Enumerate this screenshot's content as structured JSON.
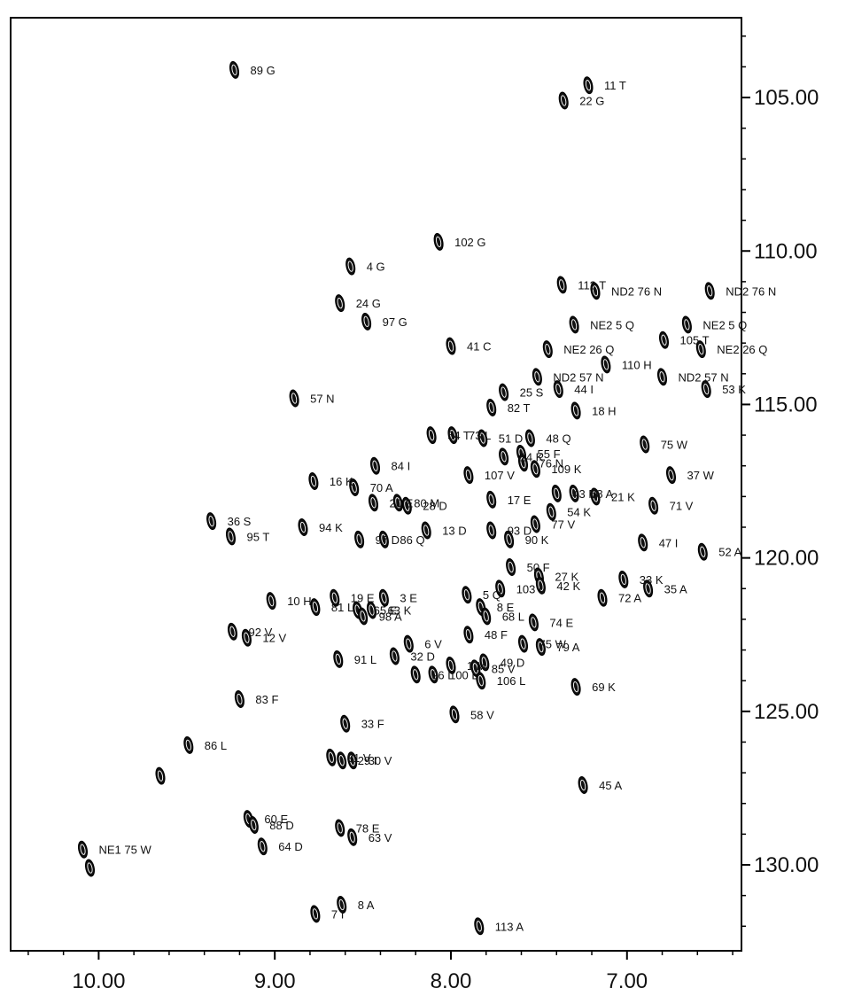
{
  "chart_data": {
    "type": "scatter",
    "title": "",
    "xlabel": "",
    "ylabel": "",
    "x_reversed": true,
    "y_reversed": true,
    "xlim": [
      10.5,
      6.35
    ],
    "ylim": [
      102.4,
      132.8
    ],
    "x_ticks": [
      10.0,
      9.0,
      8.0,
      7.0
    ],
    "x_tick_labels": [
      "10.00",
      "9.00",
      "8.00",
      "7.00"
    ],
    "y_ticks": [
      105.0,
      110.0,
      115.0,
      120.0,
      125.0,
      130.0
    ],
    "y_tick_labels": [
      "105.00",
      "110.00",
      "115.00",
      "120.00",
      "125.00",
      "130.00"
    ],
    "grid": false,
    "series": [
      {
        "points": [
          {
            "x": 9.23,
            "y": 104.1,
            "label": "89 G"
          },
          {
            "x": 7.22,
            "y": 104.6,
            "label": "11 T"
          },
          {
            "x": 7.36,
            "y": 105.1,
            "label": "22 G"
          },
          {
            "x": 8.07,
            "y": 109.7,
            "label": "102 G"
          },
          {
            "x": 8.57,
            "y": 110.5,
            "label": "4 G"
          },
          {
            "x": 7.37,
            "y": 111.1,
            "label": "112 T"
          },
          {
            "x": 7.18,
            "y": 111.3,
            "label": "ND2 76 N"
          },
          {
            "x": 6.53,
            "y": 111.3,
            "label": "ND2 76 N"
          },
          {
            "x": 8.63,
            "y": 111.7,
            "label": "24 G"
          },
          {
            "x": 8.48,
            "y": 112.3,
            "label": "97 G"
          },
          {
            "x": 7.3,
            "y": 112.4,
            "label": "NE2 5 Q"
          },
          {
            "x": 6.66,
            "y": 112.4,
            "label": "NE2 5 Q"
          },
          {
            "x": 6.79,
            "y": 112.9,
            "label": "105 T"
          },
          {
            "x": 7.45,
            "y": 113.2,
            "label": "NE2 26 Q"
          },
          {
            "x": 6.58,
            "y": 113.2,
            "label": "NE2 26 Q"
          },
          {
            "x": 8.0,
            "y": 113.1,
            "label": "41 C"
          },
          {
            "x": 7.12,
            "y": 113.7,
            "label": "110 H"
          },
          {
            "x": 7.51,
            "y": 114.1,
            "label": "ND2 57 N"
          },
          {
            "x": 6.8,
            "y": 114.1,
            "label": "ND2 57 N"
          },
          {
            "x": 6.55,
            "y": 114.5,
            "label": "53 K"
          },
          {
            "x": 7.39,
            "y": 114.5,
            "label": "44 I"
          },
          {
            "x": 7.7,
            "y": 114.6,
            "label": "25 S"
          },
          {
            "x": 8.89,
            "y": 114.8,
            "label": "57 N"
          },
          {
            "x": 7.77,
            "y": 115.1,
            "label": "82 T"
          },
          {
            "x": 7.29,
            "y": 115.2,
            "label": "18 H"
          },
          {
            "x": 8.11,
            "y": 116.0,
            "label": "54 T"
          },
          {
            "x": 7.99,
            "y": 116.0,
            "label": "73 L"
          },
          {
            "x": 7.82,
            "y": 116.1,
            "label": "51 D"
          },
          {
            "x": 7.55,
            "y": 116.1,
            "label": "48 Q"
          },
          {
            "x": 6.9,
            "y": 116.3,
            "label": "75 W"
          },
          {
            "x": 7.6,
            "y": 116.6,
            "label": "55 F"
          },
          {
            "x": 7.7,
            "y": 116.7,
            "label": "14 K"
          },
          {
            "x": 7.59,
            "y": 116.9,
            "label": "76 N"
          },
          {
            "x": 8.43,
            "y": 117.0,
            "label": "84 I"
          },
          {
            "x": 7.52,
            "y": 117.1,
            "label": "109 K"
          },
          {
            "x": 7.9,
            "y": 117.3,
            "label": "107 V"
          },
          {
            "x": 6.75,
            "y": 117.3,
            "label": "37 W"
          },
          {
            "x": 8.78,
            "y": 117.5,
            "label": "16 K"
          },
          {
            "x": 8.55,
            "y": 117.7,
            "label": "70 A"
          },
          {
            "x": 7.4,
            "y": 117.9,
            "label": "43 M"
          },
          {
            "x": 7.3,
            "y": 117.9,
            "label": "68 A"
          },
          {
            "x": 7.18,
            "y": 118.0,
            "label": "21 K"
          },
          {
            "x": 8.44,
            "y": 118.2,
            "label": "20 E"
          },
          {
            "x": 8.3,
            "y": 118.2,
            "label": "80 M"
          },
          {
            "x": 7.77,
            "y": 118.1,
            "label": "17 E"
          },
          {
            "x": 8.25,
            "y": 118.3,
            "label": "28 D"
          },
          {
            "x": 6.85,
            "y": 118.3,
            "label": "71 V"
          },
          {
            "x": 7.43,
            "y": 118.5,
            "label": "54 K"
          },
          {
            "x": 9.36,
            "y": 118.8,
            "label": "36 S"
          },
          {
            "x": 7.52,
            "y": 118.9,
            "label": "77 V"
          },
          {
            "x": 8.84,
            "y": 119.0,
            "label": "94 K"
          },
          {
            "x": 8.14,
            "y": 119.1,
            "label": "13 D"
          },
          {
            "x": 7.77,
            "y": 119.1,
            "label": "93 D"
          },
          {
            "x": 9.25,
            "y": 119.3,
            "label": "95 T"
          },
          {
            "x": 8.52,
            "y": 119.4,
            "label": "97 D"
          },
          {
            "x": 8.38,
            "y": 119.4,
            "label": "86 Q"
          },
          {
            "x": 7.67,
            "y": 119.4,
            "label": "90 K"
          },
          {
            "x": 6.91,
            "y": 119.5,
            "label": "47 I"
          },
          {
            "x": 6.57,
            "y": 119.8,
            "label": "52 A"
          },
          {
            "x": 7.66,
            "y": 120.3,
            "label": "50 F"
          },
          {
            "x": 7.5,
            "y": 120.6,
            "label": "27 K"
          },
          {
            "x": 7.02,
            "y": 120.7,
            "label": "33 K"
          },
          {
            "x": 7.49,
            "y": 120.9,
            "label": "42 K"
          },
          {
            "x": 7.72,
            "y": 121.0,
            "label": "103 L"
          },
          {
            "x": 6.88,
            "y": 121.0,
            "label": "35 A"
          },
          {
            "x": 7.91,
            "y": 121.2,
            "label": "5 Q"
          },
          {
            "x": 7.14,
            "y": 121.3,
            "label": "72 A"
          },
          {
            "x": 8.66,
            "y": 121.3,
            "label": "19 E"
          },
          {
            "x": 8.38,
            "y": 121.3,
            "label": "3 E"
          },
          {
            "x": 9.02,
            "y": 121.4,
            "label": "10 H"
          },
          {
            "x": 8.77,
            "y": 121.6,
            "label": "81 L"
          },
          {
            "x": 7.83,
            "y": 121.6,
            "label": "8 E"
          },
          {
            "x": 8.53,
            "y": 121.7,
            "label": "65 E"
          },
          {
            "x": 8.45,
            "y": 121.7,
            "label": "63 K"
          },
          {
            "x": 8.5,
            "y": 121.9,
            "label": "98 A"
          },
          {
            "x": 7.8,
            "y": 121.9,
            "label": "68 L"
          },
          {
            "x": 7.53,
            "y": 122.1,
            "label": "74 E"
          },
          {
            "x": 9.24,
            "y": 122.4,
            "label": "92 V"
          },
          {
            "x": 9.16,
            "y": 122.6,
            "label": "12 V"
          },
          {
            "x": 7.9,
            "y": 122.5,
            "label": "48 F"
          },
          {
            "x": 7.59,
            "y": 122.8,
            "label": "75 W"
          },
          {
            "x": 8.24,
            "y": 122.8,
            "label": "6 V"
          },
          {
            "x": 7.49,
            "y": 122.9,
            "label": "79 A"
          },
          {
            "x": 8.64,
            "y": 123.3,
            "label": "91 L"
          },
          {
            "x": 8.32,
            "y": 123.2,
            "label": "32 D"
          },
          {
            "x": 7.81,
            "y": 123.4,
            "label": "49 D"
          },
          {
            "x": 8.0,
            "y": 123.5,
            "label": "1 M"
          },
          {
            "x": 7.86,
            "y": 123.6,
            "label": "85 V"
          },
          {
            "x": 8.2,
            "y": 123.8,
            "label": "96 L"
          },
          {
            "x": 8.1,
            "y": 123.8,
            "label": "100 L"
          },
          {
            "x": 7.83,
            "y": 124.0,
            "label": "106 L"
          },
          {
            "x": 7.29,
            "y": 124.2,
            "label": "69 K"
          },
          {
            "x": 9.2,
            "y": 124.6,
            "label": "83 F"
          },
          {
            "x": 7.98,
            "y": 125.1,
            "label": "58 V"
          },
          {
            "x": 8.6,
            "y": 125.4,
            "label": "33 F"
          },
          {
            "x": 9.49,
            "y": 126.1,
            "label": "86 L"
          },
          {
            "x": 8.68,
            "y": 126.5,
            "label": "31 V"
          },
          {
            "x": 8.62,
            "y": 126.6,
            "label": "29 I"
          },
          {
            "x": 8.56,
            "y": 126.6,
            "label": "30 V"
          },
          {
            "x": 9.65,
            "y": 127.1,
            "label": ""
          },
          {
            "x": 7.25,
            "y": 127.4,
            "label": "45 A"
          },
          {
            "x": 9.15,
            "y": 128.5,
            "label": "60 E"
          },
          {
            "x": 9.12,
            "y": 128.7,
            "label": "88 D"
          },
          {
            "x": 8.63,
            "y": 128.8,
            "label": "78 E"
          },
          {
            "x": 8.56,
            "y": 129.1,
            "label": "63 V"
          },
          {
            "x": 9.07,
            "y": 129.4,
            "label": "64 D"
          },
          {
            "x": 10.09,
            "y": 129.5,
            "label": "NE1 75 W"
          },
          {
            "x": 10.05,
            "y": 130.1,
            "label": ""
          },
          {
            "x": 8.62,
            "y": 131.3,
            "label": "8 A"
          },
          {
            "x": 8.77,
            "y": 131.6,
            "label": "7 I"
          },
          {
            "x": 7.84,
            "y": 132.0,
            "label": "113 A"
          }
        ]
      }
    ]
  }
}
